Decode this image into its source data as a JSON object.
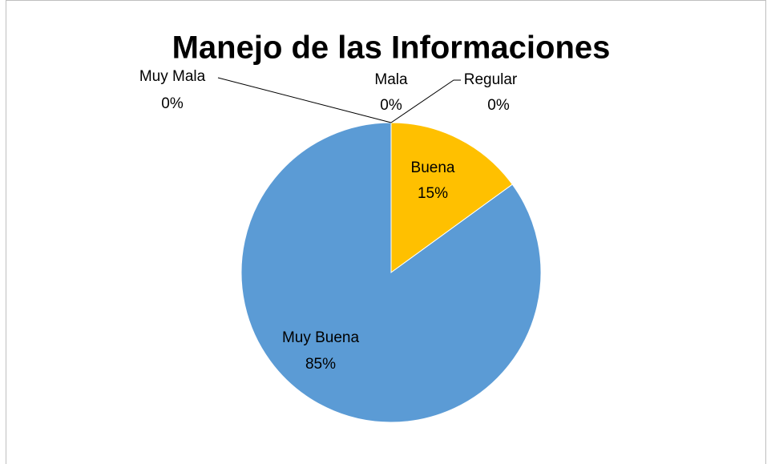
{
  "chart_data": {
    "type": "pie",
    "title": "Manejo de las Informaciones",
    "categories": [
      "Muy Mala",
      "Mala",
      "Regular",
      "Buena",
      "Muy Buena"
    ],
    "values": [
      0,
      0,
      0,
      15,
      85
    ],
    "value_labels": [
      "0%",
      "0%",
      "0%",
      "15%",
      "85%"
    ],
    "colors": [
      "#ed7d31",
      "#a5a5a5",
      "#70ad47",
      "#ffc000",
      "#5b9bd5"
    ]
  }
}
